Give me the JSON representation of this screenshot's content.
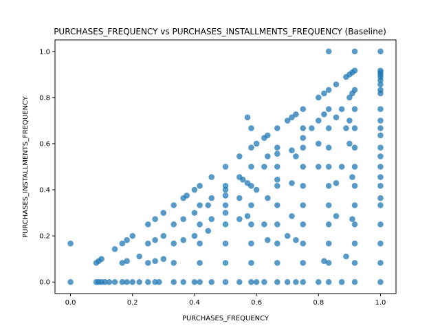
{
  "chart_data": {
    "type": "scatter",
    "title": "PURCHASES_FREQUENCY vs PURCHASES_INSTALLMENTS_FREQUENCY (Baseline)",
    "xlabel": "PURCHASES_FREQUENCY",
    "ylabel": "PURCHASES_INSTALLMENTS_FREQUENCY",
    "xlim": [
      -0.05,
      1.05
    ],
    "ylim": [
      -0.05,
      1.05
    ],
    "xticks": [
      "0.0",
      "0.2",
      "0.4",
      "0.6",
      "0.8",
      "1.0"
    ],
    "yticks": [
      "0.0",
      "0.2",
      "0.4",
      "0.6",
      "0.8",
      "1.0"
    ],
    "grid": false,
    "point_color": "#1f77b4",
    "point_alpha": 0.75,
    "points": [
      [
        0,
        0
      ],
      [
        0,
        0.167
      ],
      [
        0.083,
        0
      ],
      [
        0.083,
        0.083
      ],
      [
        0.091,
        0
      ],
      [
        0.091,
        0.091
      ],
      [
        0.1,
        0
      ],
      [
        0.1,
        0.1
      ],
      [
        0.111,
        0
      ],
      [
        0.125,
        0
      ],
      [
        0.143,
        0
      ],
      [
        0.143,
        0.143
      ],
      [
        0.167,
        0
      ],
      [
        0.167,
        0.083
      ],
      [
        0.167,
        0.167
      ],
      [
        0.182,
        0
      ],
      [
        0.182,
        0.091
      ],
      [
        0.182,
        0.182
      ],
      [
        0.2,
        0
      ],
      [
        0.2,
        0.2
      ],
      [
        0.222,
        0.111
      ],
      [
        0.222,
        0
      ],
      [
        0.25,
        0
      ],
      [
        0.25,
        0.083
      ],
      [
        0.25,
        0.167
      ],
      [
        0.25,
        0.25
      ],
      [
        0.273,
        0
      ],
      [
        0.273,
        0.091
      ],
      [
        0.273,
        0.182
      ],
      [
        0.273,
        0.273
      ],
      [
        0.286,
        0
      ],
      [
        0.3,
        0.3
      ],
      [
        0.3,
        0.2
      ],
      [
        0.3,
        0.1
      ],
      [
        0.333,
        0
      ],
      [
        0.333,
        0.083
      ],
      [
        0.333,
        0.167
      ],
      [
        0.333,
        0.25
      ],
      [
        0.333,
        0.333
      ],
      [
        0.364,
        0
      ],
      [
        0.364,
        0.182
      ],
      [
        0.364,
        0.273
      ],
      [
        0.364,
        0.364
      ],
      [
        0.375,
        0.375
      ],
      [
        0.4,
        0
      ],
      [
        0.4,
        0.2
      ],
      [
        0.4,
        0.3
      ],
      [
        0.4,
        0.4
      ],
      [
        0.417,
        0
      ],
      [
        0.417,
        0.083
      ],
      [
        0.417,
        0.167
      ],
      [
        0.417,
        0.25
      ],
      [
        0.417,
        0.333
      ],
      [
        0.417,
        0.417
      ],
      [
        0.444,
        0.222
      ],
      [
        0.444,
        0.333
      ],
      [
        0.455,
        0
      ],
      [
        0.455,
        0.273
      ],
      [
        0.455,
        0.364
      ],
      [
        0.455,
        0.455
      ],
      [
        0.5,
        0
      ],
      [
        0.5,
        0.083
      ],
      [
        0.5,
        0.167
      ],
      [
        0.5,
        0.25
      ],
      [
        0.5,
        0.3
      ],
      [
        0.5,
        0.333
      ],
      [
        0.5,
        0.375
      ],
      [
        0.5,
        0.4
      ],
      [
        0.5,
        0.417
      ],
      [
        0.5,
        0.5
      ],
      [
        0.545,
        0
      ],
      [
        0.545,
        0.273
      ],
      [
        0.545,
        0.364
      ],
      [
        0.545,
        0.455
      ],
      [
        0.545,
        0.545
      ],
      [
        0.556,
        0.444
      ],
      [
        0.571,
        0.429
      ],
      [
        0.571,
        0.286
      ],
      [
        0.571,
        0.714
      ],
      [
        0.583,
        0
      ],
      [
        0.583,
        0.083
      ],
      [
        0.583,
        0.167
      ],
      [
        0.583,
        0.25
      ],
      [
        0.583,
        0.333
      ],
      [
        0.583,
        0.417
      ],
      [
        0.583,
        0.5
      ],
      [
        0.583,
        0.583
      ],
      [
        0.583,
        0.667
      ],
      [
        0.6,
        0.6
      ],
      [
        0.6,
        0.4
      ],
      [
        0.6,
        0
      ],
      [
        0.625,
        0
      ],
      [
        0.625,
        0.25
      ],
      [
        0.625,
        0.5
      ],
      [
        0.625,
        0.625
      ],
      [
        0.636,
        0.182
      ],
      [
        0.636,
        0.364
      ],
      [
        0.636,
        0.545
      ],
      [
        0.636,
        0.636
      ],
      [
        0.667,
        0
      ],
      [
        0.667,
        0.083
      ],
      [
        0.667,
        0.167
      ],
      [
        0.667,
        0.25
      ],
      [
        0.667,
        0.333
      ],
      [
        0.667,
        0.417
      ],
      [
        0.667,
        0.444
      ],
      [
        0.667,
        0.5
      ],
      [
        0.667,
        0.556
      ],
      [
        0.667,
        0.583
      ],
      [
        0.667,
        0.667
      ],
      [
        0.7,
        0.7
      ],
      [
        0.7,
        0.2
      ],
      [
        0.7,
        0
      ],
      [
        0.714,
        0.286
      ],
      [
        0.714,
        0.571
      ],
      [
        0.714,
        0.714
      ],
      [
        0.714,
        0.429
      ],
      [
        0.727,
        0
      ],
      [
        0.727,
        0.182
      ],
      [
        0.727,
        0.545
      ],
      [
        0.727,
        0.727
      ],
      [
        0.75,
        0
      ],
      [
        0.75,
        0.083
      ],
      [
        0.75,
        0.167
      ],
      [
        0.75,
        0.25
      ],
      [
        0.75,
        0.333
      ],
      [
        0.75,
        0.417
      ],
      [
        0.75,
        0.5
      ],
      [
        0.75,
        0.583
      ],
      [
        0.75,
        0.625
      ],
      [
        0.75,
        0.667
      ],
      [
        0.75,
        0.75
      ],
      [
        0.778,
        0.667
      ],
      [
        0.8,
        0
      ],
      [
        0.8,
        0.5
      ],
      [
        0.8,
        0.6
      ],
      [
        0.8,
        0.7
      ],
      [
        0.8,
        0.8
      ],
      [
        0.818,
        0.091
      ],
      [
        0.818,
        0.727
      ],
      [
        0.818,
        0.818
      ],
      [
        0.833,
        0
      ],
      [
        0.833,
        0.083
      ],
      [
        0.833,
        0.167
      ],
      [
        0.833,
        0.25
      ],
      [
        0.833,
        0.333
      ],
      [
        0.833,
        0.417
      ],
      [
        0.833,
        0.5
      ],
      [
        0.833,
        0.583
      ],
      [
        0.833,
        0.667
      ],
      [
        0.833,
        0.75
      ],
      [
        0.833,
        0.833
      ],
      [
        0.833,
        1.0
      ],
      [
        0.857,
        0.286
      ],
      [
        0.857,
        0.429
      ],
      [
        0.857,
        0.714
      ],
      [
        0.857,
        0.857
      ],
      [
        0.875,
        0
      ],
      [
        0.875,
        0.5
      ],
      [
        0.875,
        0.75
      ],
      [
        0.889,
        0.111
      ],
      [
        0.889,
        0.667
      ],
      [
        0.889,
        0.889
      ],
      [
        0.9,
        0.9
      ],
      [
        0.9,
        0.6
      ],
      [
        0.9,
        0.7
      ],
      [
        0.9,
        0.8
      ],
      [
        0.909,
        0.273
      ],
      [
        0.909,
        0.455
      ],
      [
        0.909,
        0.818
      ],
      [
        0.909,
        0.909
      ],
      [
        0.917,
        0
      ],
      [
        0.917,
        0.083
      ],
      [
        0.917,
        0.167
      ],
      [
        0.917,
        0.25
      ],
      [
        0.917,
        0.333
      ],
      [
        0.917,
        0.417
      ],
      [
        0.917,
        0.5
      ],
      [
        0.917,
        0.583
      ],
      [
        0.917,
        0.667
      ],
      [
        0.917,
        0.75
      ],
      [
        0.917,
        0.833
      ],
      [
        0.917,
        0.917
      ],
      [
        0.917,
        1.0
      ],
      [
        1.0,
        0
      ],
      [
        1.0,
        0.083
      ],
      [
        1.0,
        0.167
      ],
      [
        1.0,
        0.25
      ],
      [
        1.0,
        0.333
      ],
      [
        1.0,
        0.364
      ],
      [
        1.0,
        0.417
      ],
      [
        1.0,
        0.455
      ],
      [
        1.0,
        0.5
      ],
      [
        1.0,
        0.545
      ],
      [
        1.0,
        0.583
      ],
      [
        1.0,
        0.636
      ],
      [
        1.0,
        0.667
      ],
      [
        1.0,
        0.7
      ],
      [
        1.0,
        0.75
      ],
      [
        1.0,
        0.818
      ],
      [
        1.0,
        0.833
      ],
      [
        1.0,
        0.857
      ],
      [
        1.0,
        0.875
      ],
      [
        1.0,
        0.889
      ],
      [
        1.0,
        0.9
      ],
      [
        1.0,
        0.909
      ],
      [
        1.0,
        0.917
      ],
      [
        1.0,
        1.0
      ]
    ]
  }
}
